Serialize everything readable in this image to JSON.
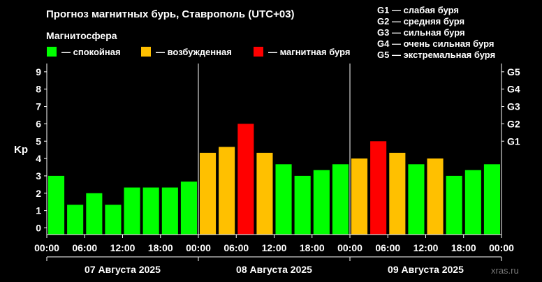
{
  "title": "Прогноз магнитных бурь, Ставрополь (UTC+03)",
  "magnetosphere_label": "Магнитосфера",
  "legend": [
    {
      "label": "— спокойная",
      "color": "#00ff00"
    },
    {
      "label": "— возбужденная",
      "color": "#ffc000"
    },
    {
      "label": "— магнитная буря",
      "color": "#ff0000"
    }
  ],
  "g_legend": [
    "G1 — слабая буря",
    "G2 — средняя буря",
    "G3 — сильная буря",
    "G4 — очень сильная буря",
    "G5 — экстремальная буря"
  ],
  "watermark": "xras.ru",
  "chart_data": {
    "type": "bar",
    "ylabel": "Kp",
    "ylim": [
      0,
      9
    ],
    "yticks": [
      "0",
      "1",
      "2",
      "3",
      "4",
      "5",
      "6",
      "7",
      "8",
      "9"
    ],
    "right_axis_ticks": [
      {
        "label": "G1",
        "value": 5
      },
      {
        "label": "G2",
        "value": 6
      },
      {
        "label": "G3",
        "value": 7
      },
      {
        "label": "G4",
        "value": 8
      },
      {
        "label": "G5",
        "value": 9
      }
    ],
    "xticks": [
      "00:00",
      "06:00",
      "12:00",
      "18:00",
      "00:00",
      "06:00",
      "12:00",
      "18:00",
      "00:00",
      "06:00",
      "12:00",
      "18:00",
      "00:00"
    ],
    "days": [
      "07 Августа 2025",
      "08 Августа 2025",
      "09 Августа 2025"
    ],
    "bars_per_day": 8,
    "values": [
      3.0,
      1.33,
      2.0,
      1.33,
      2.33,
      2.33,
      2.33,
      2.67,
      4.33,
      4.67,
      6.0,
      4.33,
      3.67,
      3.0,
      3.33,
      3.67,
      4.0,
      5.0,
      4.33,
      3.67,
      4.0,
      3.0,
      3.33,
      3.67
    ],
    "colors": [
      "#00ff00",
      "#00ff00",
      "#00ff00",
      "#00ff00",
      "#00ff00",
      "#00ff00",
      "#00ff00",
      "#00ff00",
      "#ffc000",
      "#ffc000",
      "#ff0000",
      "#ffc000",
      "#00ff00",
      "#00ff00",
      "#00ff00",
      "#00ff00",
      "#ffc000",
      "#ff0000",
      "#ffc000",
      "#00ff00",
      "#ffc000",
      "#00ff00",
      "#00ff00",
      "#00ff00"
    ]
  }
}
